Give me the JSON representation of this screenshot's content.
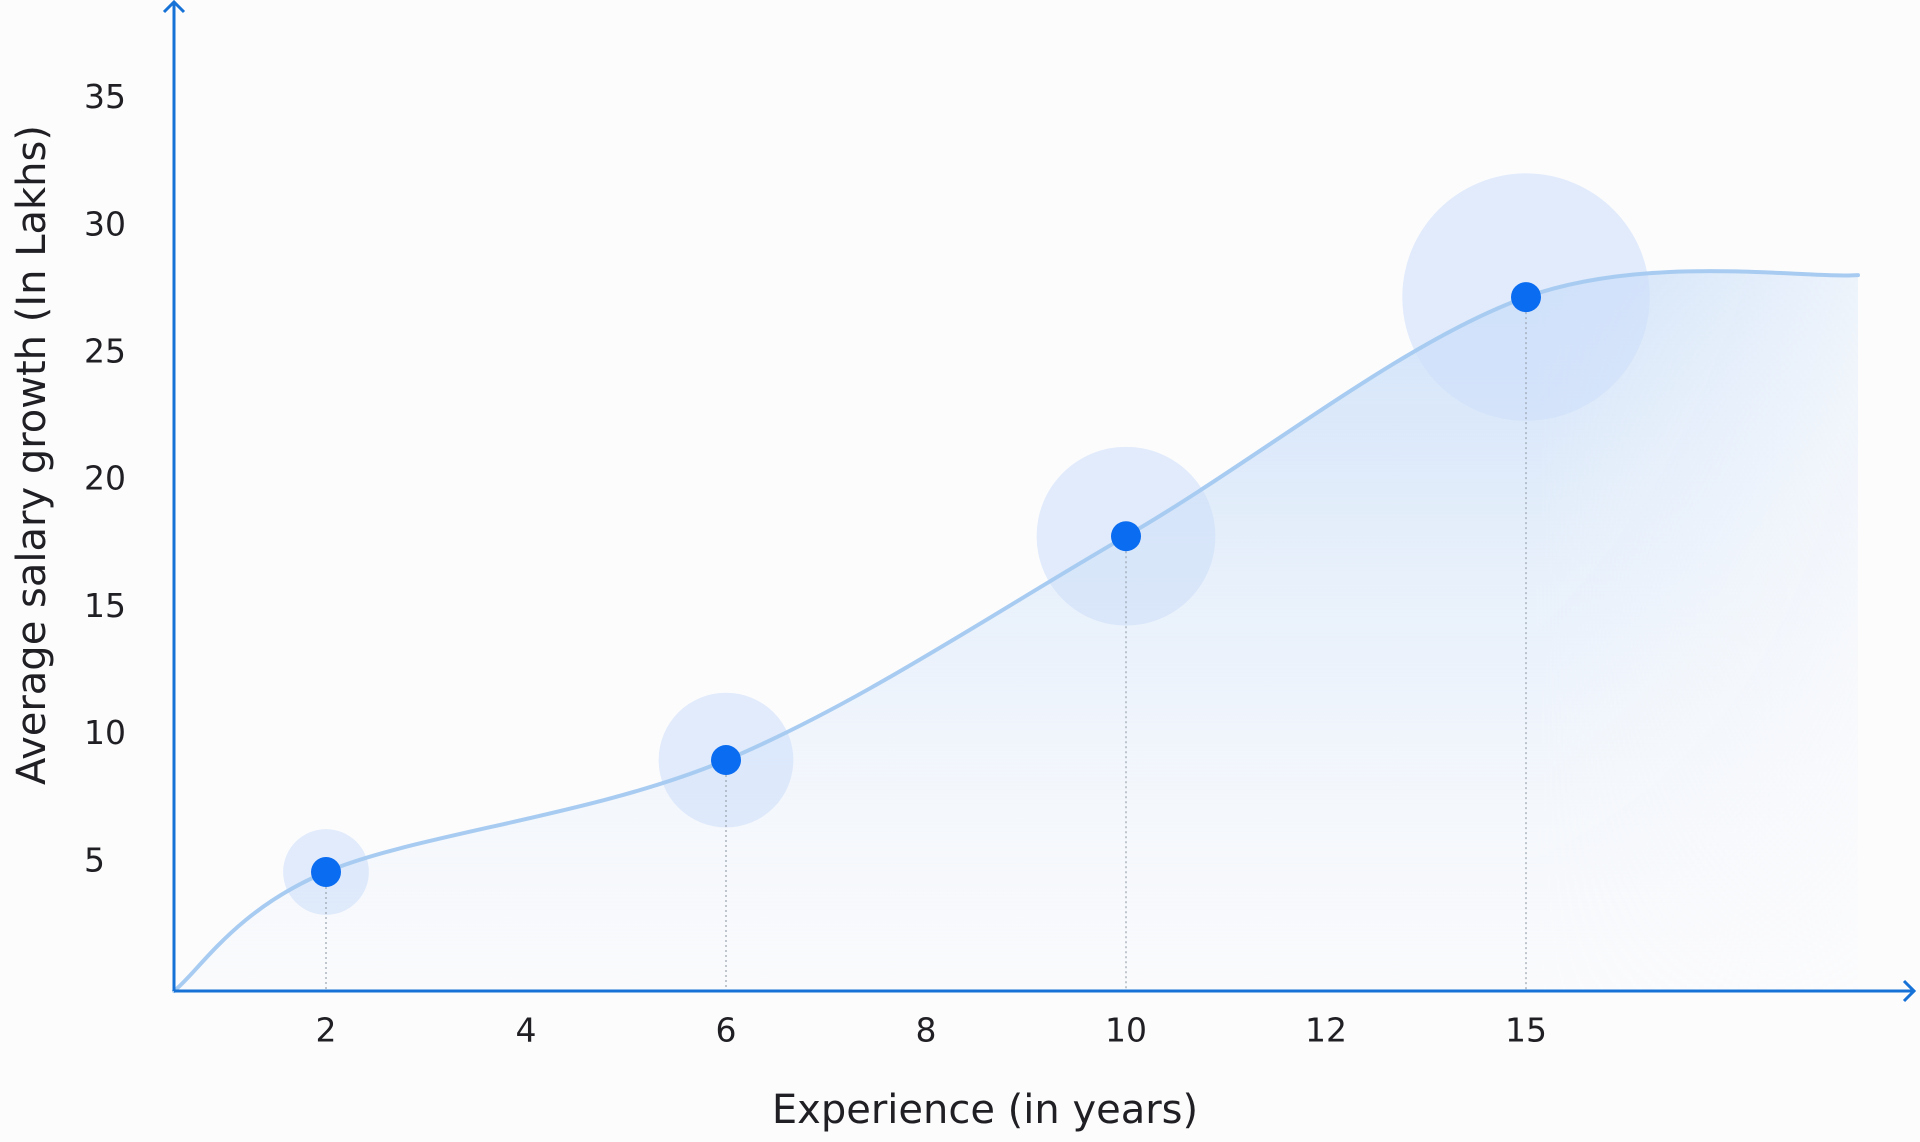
{
  "chart_data": {
    "type": "bubble",
    "x_label": "Experience (in years)",
    "y_label": "Average salary growth (In Lakhs)",
    "categories": [
      "2",
      "4",
      "6",
      "8",
      "10",
      "12",
      "15"
    ],
    "ylim": [
      0,
      38.8
    ],
    "yticks": [
      5,
      10,
      15,
      20,
      25,
      30,
      35
    ],
    "series": [
      {
        "x": [
          "2",
          "6",
          "10",
          "15"
        ],
        "values": [
          4.6,
          9,
          17.8,
          27.2
        ],
        "sizes": [
          35,
          55,
          73,
          101
        ],
        "color": "#0a6cf0"
      }
    ],
    "axis_color": "#1672d6"
  }
}
